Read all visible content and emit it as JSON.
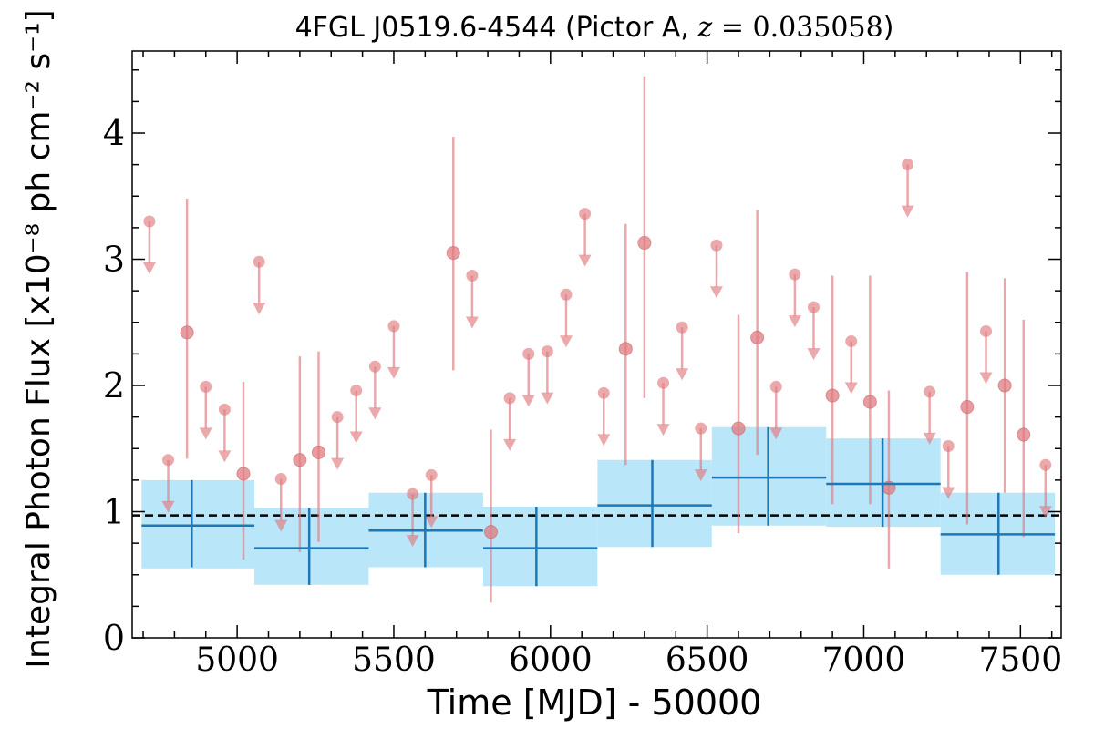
{
  "chart_data": {
    "type": "scatter",
    "title": "4FGL J0519.6-4544 (Pictor A, z = 0.035058)",
    "title_parts": {
      "prefix": "4FGL J0519.6-4544 (Pictor A, ",
      "var": "z",
      "eq": " = 0.035058",
      "suffix": ")"
    },
    "xlabel": "Time [MJD] - 50000",
    "ylabel": "Integral Photon Flux [x10⁻⁸ ph cm⁻² s⁻¹]",
    "xlim": [
      4665,
      7630
    ],
    "ylim": [
      0,
      4.65
    ],
    "x_ticks": [
      5000,
      5500,
      6000,
      6500,
      7000,
      7500
    ],
    "y_ticks": [
      0,
      1,
      2,
      3,
      4
    ],
    "x_tick_labels": [
      "5000",
      "5500",
      "6000",
      "6500",
      "7000",
      "7500"
    ],
    "y_tick_labels": [
      "0",
      "1",
      "2",
      "3",
      "4"
    ],
    "legend": "none",
    "grid": false,
    "reference_line": {
      "y": 0.97,
      "style": "dashed",
      "color": "#000000"
    },
    "colors": {
      "points": "#e07b80",
      "bins": "#1f77b4",
      "bin_band": "#b9e6f9"
    },
    "upper_limits": [
      {
        "x": 4720,
        "y": 3.3
      },
      {
        "x": 4780,
        "y": 1.41
      },
      {
        "x": 4900,
        "y": 1.99
      },
      {
        "x": 4960,
        "y": 1.81
      },
      {
        "x": 5070,
        "y": 2.98
      },
      {
        "x": 5140,
        "y": 1.26
      },
      {
        "x": 5320,
        "y": 1.75
      },
      {
        "x": 5380,
        "y": 1.96
      },
      {
        "x": 5440,
        "y": 2.15
      },
      {
        "x": 5500,
        "y": 2.47
      },
      {
        "x": 5560,
        "y": 1.14
      },
      {
        "x": 5620,
        "y": 1.29
      },
      {
        "x": 5750,
        "y": 2.87
      },
      {
        "x": 5870,
        "y": 1.9
      },
      {
        "x": 5930,
        "y": 2.25
      },
      {
        "x": 5990,
        "y": 2.27
      },
      {
        "x": 6050,
        "y": 2.72
      },
      {
        "x": 6110,
        "y": 3.36
      },
      {
        "x": 6170,
        "y": 1.94
      },
      {
        "x": 6360,
        "y": 2.02
      },
      {
        "x": 6420,
        "y": 2.46
      },
      {
        "x": 6480,
        "y": 1.66
      },
      {
        "x": 6530,
        "y": 3.11
      },
      {
        "x": 6720,
        "y": 1.99
      },
      {
        "x": 6780,
        "y": 2.88
      },
      {
        "x": 6840,
        "y": 2.62
      },
      {
        "x": 6960,
        "y": 2.35
      },
      {
        "x": 7140,
        "y": 3.75
      },
      {
        "x": 7210,
        "y": 1.95
      },
      {
        "x": 7270,
        "y": 1.52
      },
      {
        "x": 7390,
        "y": 2.43
      },
      {
        "x": 7580,
        "y": 1.37
      }
    ],
    "detections": [
      {
        "x": 4840,
        "y": 2.42,
        "lo": 1.42,
        "hi": 3.48
      },
      {
        "x": 5020,
        "y": 1.3,
        "lo": 0.62,
        "hi": 2.03
      },
      {
        "x": 5200,
        "y": 1.41,
        "lo": 0.68,
        "hi": 2.23
      },
      {
        "x": 5260,
        "y": 1.47,
        "lo": 0.76,
        "hi": 2.27
      },
      {
        "x": 5690,
        "y": 3.05,
        "lo": 2.12,
        "hi": 3.97
      },
      {
        "x": 5810,
        "y": 0.84,
        "lo": 0.28,
        "hi": 1.65
      },
      {
        "x": 6240,
        "y": 2.29,
        "lo": 1.37,
        "hi": 3.28
      },
      {
        "x": 6300,
        "y": 3.13,
        "lo": 1.9,
        "hi": 4.45
      },
      {
        "x": 6600,
        "y": 1.66,
        "lo": 0.83,
        "hi": 2.56
      },
      {
        "x": 6660,
        "y": 2.38,
        "lo": 1.45,
        "hi": 3.39
      },
      {
        "x": 6900,
        "y": 1.92,
        "lo": 1.06,
        "hi": 2.87
      },
      {
        "x": 7020,
        "y": 1.87,
        "lo": 1.06,
        "hi": 2.87
      },
      {
        "x": 7080,
        "y": 1.19,
        "lo": 0.55,
        "hi": 1.96
      },
      {
        "x": 7330,
        "y": 1.83,
        "lo": 0.9,
        "hi": 2.9
      },
      {
        "x": 7450,
        "y": 2.0,
        "lo": 1.15,
        "hi": 2.85
      },
      {
        "x": 7510,
        "y": 1.61,
        "lo": 0.8,
        "hi": 2.52
      }
    ],
    "bins": [
      {
        "x0": 4695,
        "x1": 5055,
        "xc": 4855,
        "y": 0.89,
        "lo": 0.56,
        "hi": 1.25,
        "band_lo": 0.55,
        "band_hi": 1.25
      },
      {
        "x0": 5055,
        "x1": 5420,
        "xc": 5230,
        "y": 0.71,
        "lo": 0.42,
        "hi": 1.03,
        "band_lo": 0.42,
        "band_hi": 1.03
      },
      {
        "x0": 5420,
        "x1": 5785,
        "xc": 5600,
        "y": 0.85,
        "lo": 0.56,
        "hi": 1.15,
        "band_lo": 0.56,
        "band_hi": 1.15
      },
      {
        "x0": 5785,
        "x1": 6150,
        "xc": 5955,
        "y": 0.71,
        "lo": 0.41,
        "hi": 1.04,
        "band_lo": 0.41,
        "band_hi": 1.04
      },
      {
        "x0": 6150,
        "x1": 6515,
        "xc": 6325,
        "y": 1.05,
        "lo": 0.72,
        "hi": 1.41,
        "band_lo": 0.72,
        "band_hi": 1.41
      },
      {
        "x0": 6515,
        "x1": 6880,
        "xc": 6695,
        "y": 1.27,
        "lo": 0.89,
        "hi": 1.67,
        "band_lo": 0.89,
        "band_hi": 1.67
      },
      {
        "x0": 6880,
        "x1": 7245,
        "xc": 7060,
        "y": 1.22,
        "lo": 0.88,
        "hi": 1.58,
        "band_lo": 0.88,
        "band_hi": 1.58
      },
      {
        "x0": 7245,
        "x1": 7610,
        "xc": 7430,
        "y": 0.82,
        "lo": 0.5,
        "hi": 1.15,
        "band_lo": 0.5,
        "band_hi": 1.15
      }
    ]
  }
}
